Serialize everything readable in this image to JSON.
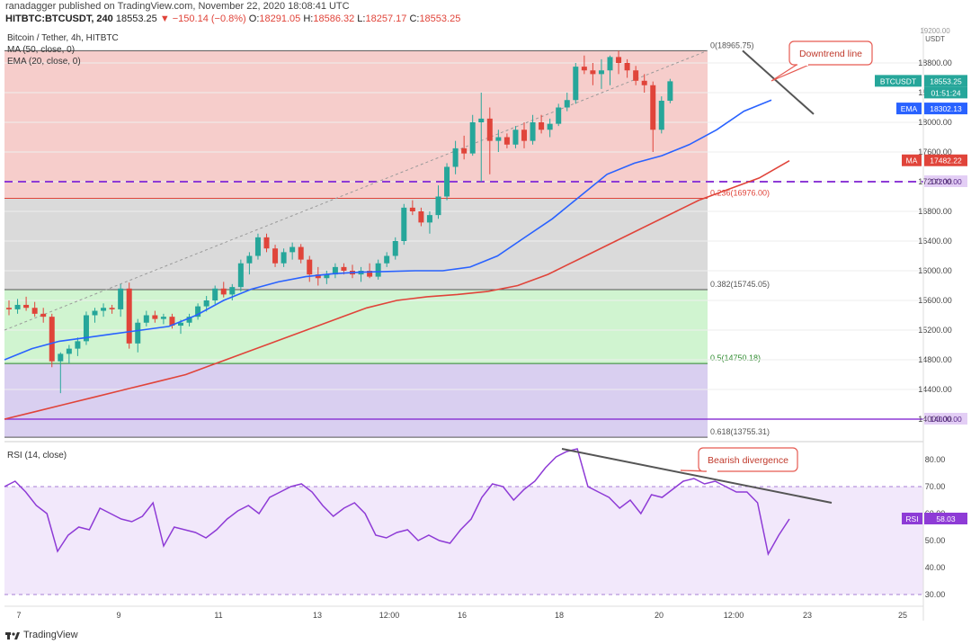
{
  "header": {
    "publisher_line": "ranadagger published on TradingView.com, November 22, 2020 18:08:41 UTC",
    "symbol": "HITBTC:BTCUSDT, 240",
    "last": "18553.25",
    "change": "▼ −150.14 (−0.8%)",
    "open_label": "O:",
    "open": "18291.05",
    "high_label": "H:",
    "high": "18586.32",
    "low_label": "L:",
    "low": "18257.17",
    "close_label": "C:",
    "close": "18553.25"
  },
  "legend": {
    "title": "Bitcoin / Tether, 4h, HITBTC",
    "ma": "MA (50, close, 0)",
    "ema": "EMA (20, close, 0)",
    "rsi": "RSI (14, close)"
  },
  "annotations": {
    "downtrend": "Downtrend line",
    "divergence": "Bearish divergence"
  },
  "fib": [
    {
      "label": "0(18965.75)",
      "value": 18965.75,
      "color": "#555555"
    },
    {
      "label": "0.236(16976.00)",
      "value": 16976.0,
      "color": "#e0443a"
    },
    {
      "label": "0.382(15745.05)",
      "value": 15745.05,
      "color": "#555555"
    },
    {
      "label": "0.5(14750.18)",
      "value": 14750.18,
      "color": "#2e8b2e"
    },
    {
      "label": "0.618(13755.31)",
      "value": 13755.31,
      "color": "#555555"
    }
  ],
  "price_badges": [
    {
      "name": "btcusdt",
      "text": "BTCUSDT",
      "value": "18553.25",
      "color": "#26a69a"
    },
    {
      "name": "countdown",
      "text": "",
      "value": "01:51:24",
      "color": "#26a69a"
    },
    {
      "name": "ema",
      "text": "EMA",
      "value": "18302.13",
      "color": "#2962ff"
    },
    {
      "name": "ma",
      "text": "MA",
      "value": "17482.22",
      "color": "#e0443a"
    },
    {
      "name": "level17200",
      "text": "",
      "value": "17200.00",
      "color": "#8e3bd6"
    },
    {
      "name": "level14000",
      "text": "",
      "value": "14000.00",
      "color": "#8e3bd6"
    }
  ],
  "rsi_badge": {
    "text": "RSI",
    "value": "58.03",
    "color": "#8e3bd6"
  },
  "currency": "USDT",
  "top_tick": "19200.00",
  "colors": {
    "up": "#26a69a",
    "down": "#e0443a",
    "ema": "#2962ff",
    "ma": "#e0443a",
    "rsi": "#8e3bd6",
    "level": "#8e3bd6"
  },
  "chart_data": {
    "type": "candlestick",
    "title": "Bitcoin / Tether, 4h, HITBTC",
    "yaxis": {
      "ticks": [
        14000,
        14400,
        14800,
        15200,
        15600,
        16000,
        16400,
        16800,
        17200,
        17600,
        18000,
        18400,
        18800
      ],
      "ylim": [
        13650,
        19250
      ]
    },
    "xaxis": {
      "labels": [
        "7",
        "9",
        "11",
        "13",
        "12:00",
        "16",
        "18",
        "20",
        "12:00",
        "23",
        "25"
      ]
    },
    "horizontal_levels": [
      17200,
      14000
    ],
    "candles": [
      {
        "o": 15500,
        "h": 15600,
        "l": 15400,
        "c": 15480
      },
      {
        "o": 15480,
        "h": 15620,
        "l": 15420,
        "c": 15540
      },
      {
        "o": 15540,
        "h": 15650,
        "l": 15460,
        "c": 15500
      },
      {
        "o": 15500,
        "h": 15580,
        "l": 15380,
        "c": 15420
      },
      {
        "o": 15420,
        "h": 15500,
        "l": 15300,
        "c": 15380
      },
      {
        "o": 15380,
        "h": 15420,
        "l": 14700,
        "c": 14780
      },
      {
        "o": 14780,
        "h": 14900,
        "l": 14350,
        "c": 14880
      },
      {
        "o": 14880,
        "h": 15000,
        "l": 14750,
        "c": 14950
      },
      {
        "o": 14950,
        "h": 15100,
        "l": 14850,
        "c": 15050
      },
      {
        "o": 15050,
        "h": 15450,
        "l": 15000,
        "c": 15400
      },
      {
        "o": 15400,
        "h": 15500,
        "l": 15300,
        "c": 15460
      },
      {
        "o": 15460,
        "h": 15560,
        "l": 15380,
        "c": 15500
      },
      {
        "o": 15500,
        "h": 15540,
        "l": 15420,
        "c": 15480
      },
      {
        "o": 15480,
        "h": 15820,
        "l": 15380,
        "c": 15760
      },
      {
        "o": 15760,
        "h": 15840,
        "l": 14950,
        "c": 15020
      },
      {
        "o": 15020,
        "h": 15350,
        "l": 14900,
        "c": 15300
      },
      {
        "o": 15300,
        "h": 15460,
        "l": 15250,
        "c": 15400
      },
      {
        "o": 15400,
        "h": 15460,
        "l": 15300,
        "c": 15350
      },
      {
        "o": 15350,
        "h": 15420,
        "l": 15280,
        "c": 15380
      },
      {
        "o": 15380,
        "h": 15420,
        "l": 15220,
        "c": 15260
      },
      {
        "o": 15260,
        "h": 15340,
        "l": 15150,
        "c": 15300
      },
      {
        "o": 15300,
        "h": 15420,
        "l": 15250,
        "c": 15380
      },
      {
        "o": 15380,
        "h": 15560,
        "l": 15340,
        "c": 15520
      },
      {
        "o": 15520,
        "h": 15660,
        "l": 15450,
        "c": 15600
      },
      {
        "o": 15600,
        "h": 15800,
        "l": 15550,
        "c": 15760
      },
      {
        "o": 15760,
        "h": 15850,
        "l": 15640,
        "c": 15680
      },
      {
        "o": 15680,
        "h": 15820,
        "l": 15600,
        "c": 15780
      },
      {
        "o": 15780,
        "h": 16150,
        "l": 15720,
        "c": 16100
      },
      {
        "o": 16100,
        "h": 16250,
        "l": 15950,
        "c": 16200
      },
      {
        "o": 16200,
        "h": 16500,
        "l": 16150,
        "c": 16450
      },
      {
        "o": 16450,
        "h": 16500,
        "l": 16250,
        "c": 16300
      },
      {
        "o": 16300,
        "h": 16350,
        "l": 16050,
        "c": 16100
      },
      {
        "o": 16100,
        "h": 16300,
        "l": 16050,
        "c": 16250
      },
      {
        "o": 16250,
        "h": 16380,
        "l": 16150,
        "c": 16320
      },
      {
        "o": 16320,
        "h": 16360,
        "l": 16100,
        "c": 16150
      },
      {
        "o": 16150,
        "h": 16200,
        "l": 15850,
        "c": 15950
      },
      {
        "o": 15950,
        "h": 16050,
        "l": 15800,
        "c": 15900
      },
      {
        "o": 15900,
        "h": 16000,
        "l": 15820,
        "c": 15950
      },
      {
        "o": 15950,
        "h": 16100,
        "l": 15900,
        "c": 16050
      },
      {
        "o": 16050,
        "h": 16100,
        "l": 15950,
        "c": 16000
      },
      {
        "o": 16000,
        "h": 16080,
        "l": 15900,
        "c": 15950
      },
      {
        "o": 15950,
        "h": 16050,
        "l": 15850,
        "c": 16000
      },
      {
        "o": 16000,
        "h": 16100,
        "l": 15900,
        "c": 15920
      },
      {
        "o": 15920,
        "h": 16150,
        "l": 15880,
        "c": 16100
      },
      {
        "o": 16100,
        "h": 16250,
        "l": 16050,
        "c": 16200
      },
      {
        "o": 16200,
        "h": 16450,
        "l": 16150,
        "c": 16400
      },
      {
        "o": 16400,
        "h": 16900,
        "l": 16350,
        "c": 16850
      },
      {
        "o": 16850,
        "h": 16950,
        "l": 16750,
        "c": 16800
      },
      {
        "o": 16800,
        "h": 16850,
        "l": 16600,
        "c": 16650
      },
      {
        "o": 16650,
        "h": 16800,
        "l": 16500,
        "c": 16750
      },
      {
        "o": 16750,
        "h": 17150,
        "l": 16700,
        "c": 17000
      },
      {
        "o": 17000,
        "h": 17450,
        "l": 16950,
        "c": 17400
      },
      {
        "o": 17400,
        "h": 17750,
        "l": 17300,
        "c": 17650
      },
      {
        "o": 17650,
        "h": 17820,
        "l": 17500,
        "c": 17580
      },
      {
        "o": 17580,
        "h": 18100,
        "l": 17550,
        "c": 18000
      },
      {
        "o": 18000,
        "h": 18400,
        "l": 17200,
        "c": 18050
      },
      {
        "o": 18050,
        "h": 18200,
        "l": 17300,
        "c": 17750
      },
      {
        "o": 17750,
        "h": 17900,
        "l": 17600,
        "c": 17800
      },
      {
        "o": 17800,
        "h": 17850,
        "l": 17650,
        "c": 17700
      },
      {
        "o": 17700,
        "h": 17950,
        "l": 17650,
        "c": 17900
      },
      {
        "o": 17900,
        "h": 18000,
        "l": 17650,
        "c": 17750
      },
      {
        "o": 17750,
        "h": 18100,
        "l": 17700,
        "c": 18000
      },
      {
        "o": 18000,
        "h": 18100,
        "l": 17850,
        "c": 17900
      },
      {
        "o": 17900,
        "h": 18050,
        "l": 17800,
        "c": 17980
      },
      {
        "o": 17980,
        "h": 18250,
        "l": 17950,
        "c": 18200
      },
      {
        "o": 18200,
        "h": 18400,
        "l": 18150,
        "c": 18300
      },
      {
        "o": 18300,
        "h": 18800,
        "l": 18250,
        "c": 18750
      },
      {
        "o": 18750,
        "h": 18900,
        "l": 18650,
        "c": 18700
      },
      {
        "o": 18700,
        "h": 18800,
        "l": 18500,
        "c": 18650
      },
      {
        "o": 18650,
        "h": 18850,
        "l": 18450,
        "c": 18700
      },
      {
        "o": 18700,
        "h": 18900,
        "l": 18500,
        "c": 18880
      },
      {
        "o": 18880,
        "h": 18966,
        "l": 18650,
        "c": 18800
      },
      {
        "o": 18800,
        "h": 18850,
        "l": 18600,
        "c": 18700
      },
      {
        "o": 18700,
        "h": 18760,
        "l": 18500,
        "c": 18560
      },
      {
        "o": 18560,
        "h": 18650,
        "l": 18400,
        "c": 18500
      },
      {
        "o": 18500,
        "h": 18550,
        "l": 17600,
        "c": 17900
      },
      {
        "o": 17900,
        "h": 18350,
        "l": 17850,
        "c": 18291
      },
      {
        "o": 18291,
        "h": 18586,
        "l": 18257,
        "c": 18553
      }
    ],
    "ema20": [
      14800,
      14950,
      15050,
      15100,
      15150,
      15200,
      15250,
      15400,
      15600,
      15750,
      15850,
      15920,
      15960,
      15980,
      15990,
      16000,
      16000,
      16050,
      16200,
      16450,
      16700,
      17000,
      17300,
      17450,
      17550,
      17700,
      17900,
      18150,
      18300
    ],
    "ma50": [
      14000,
      14100,
      14200,
      14300,
      14400,
      14500,
      14600,
      14750,
      14900,
      15050,
      15200,
      15350,
      15500,
      15600,
      15650,
      15680,
      15720,
      15800,
      15950,
      16150,
      16350,
      16550,
      16750,
      16950,
      17100,
      17250,
      17482
    ],
    "rsi": {
      "levels": [
        30,
        40,
        50,
        60,
        70,
        80
      ],
      "band": [
        30,
        70
      ],
      "values": [
        70,
        72,
        68,
        63,
        60,
        46,
        52,
        55,
        54,
        62,
        60,
        58,
        57,
        59,
        64,
        48,
        55,
        54,
        53,
        51,
        54,
        58,
        61,
        63,
        60,
        66,
        68,
        70,
        71,
        68,
        63,
        59,
        62,
        64,
        60,
        52,
        51,
        53,
        54,
        50,
        52,
        50,
        49,
        54,
        58,
        66,
        71,
        70,
        65,
        69,
        72,
        77,
        81,
        83,
        84,
        70,
        68,
        66,
        62,
        65,
        60,
        67,
        66,
        69,
        72,
        73,
        71,
        72,
        70,
        68,
        68,
        64,
        45,
        52,
        58
      ]
    }
  }
}
